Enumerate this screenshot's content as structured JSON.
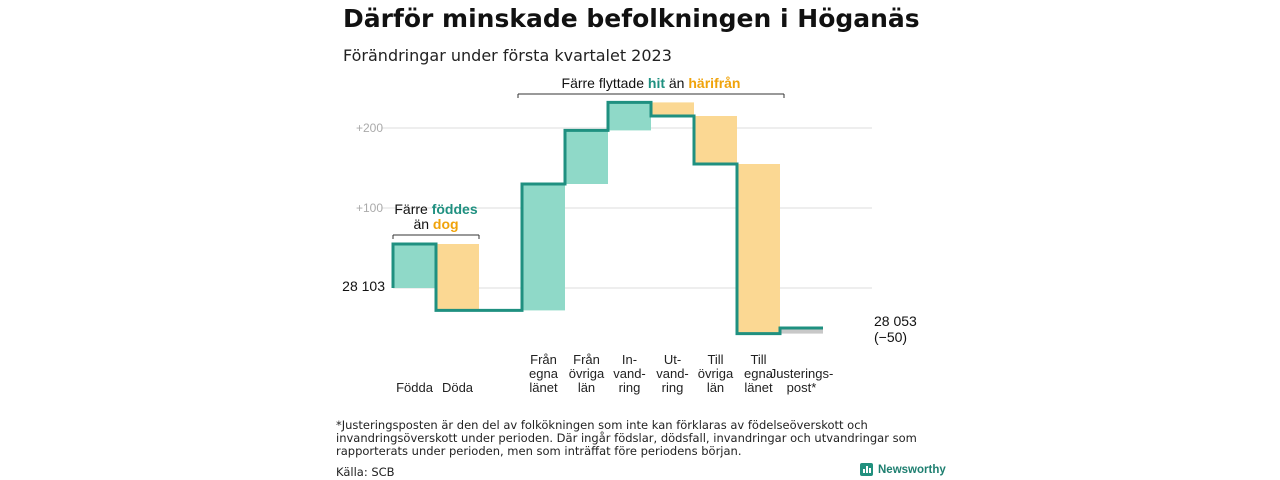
{
  "title": "Därför minskade befolkningen i Höganäs",
  "subtitle": "Förändringar under första kvartalet 2023",
  "colors": {
    "increase": "#8fd9c8",
    "decrease": "#fbd893",
    "line": "#1f9080",
    "adjustment": "#c8c8c8",
    "teal_text": "#1f9080",
    "orange_text": "#f0a30a",
    "grid": "#dddddd"
  },
  "chart_data": {
    "type": "waterfall",
    "start_value": 28103,
    "start_label": "28 103",
    "end_label": "28 053",
    "end_change_label": "(−50)",
    "ytick_labels": [
      "+100",
      "+200"
    ],
    "yticks": [
      100,
      200
    ],
    "ylim": [
      -70,
      240
    ],
    "steps": [
      {
        "label": "Födda",
        "delta": 55,
        "kind": "increase"
      },
      {
        "label": "Döda",
        "delta": -83,
        "kind": "decrease"
      },
      {
        "label": "",
        "delta": 0,
        "kind": "gap"
      },
      {
        "label": "Från egna länet",
        "delta": 158,
        "kind": "increase"
      },
      {
        "label": "Från övriga län",
        "delta": 67,
        "kind": "increase"
      },
      {
        "label": "In-vand-ring",
        "delta": 35,
        "kind": "increase"
      },
      {
        "label": "Ut-vand-ring",
        "delta": -17,
        "kind": "decrease"
      },
      {
        "label": "Till övriga län",
        "delta": -60,
        "kind": "decrease"
      },
      {
        "label": "Till egna länet",
        "delta": -212,
        "kind": "decrease"
      },
      {
        "label": "Justerings-post*",
        "delta": 7,
        "kind": "adjustment"
      }
    ],
    "x_labels": [
      {
        "step": 0,
        "lines": [
          "Födda"
        ]
      },
      {
        "step": 1,
        "lines": [
          "Döda"
        ]
      },
      {
        "step": 3,
        "lines": [
          "Från",
          "egna",
          "länet"
        ]
      },
      {
        "step": 4,
        "lines": [
          "Från",
          "övriga",
          "län"
        ]
      },
      {
        "step": 5,
        "lines": [
          "In-",
          "vand-",
          "ring"
        ]
      },
      {
        "step": 6,
        "lines": [
          "Ut-",
          "vand-",
          "ring"
        ]
      },
      {
        "step": 7,
        "lines": [
          "Till",
          "övriga",
          "län"
        ]
      },
      {
        "step": 8,
        "lines": [
          "Till",
          "egna",
          "länet"
        ]
      },
      {
        "step": 9,
        "lines": [
          "Justerings-",
          "post*"
        ]
      }
    ],
    "annotations": [
      {
        "id": "births",
        "parts": [
          [
            "Färre ",
            "plain"
          ],
          [
            "föddes",
            "teal"
          ]
        ],
        "parts2": [
          [
            "än ",
            "plain"
          ],
          [
            "dog",
            "orange"
          ]
        ],
        "from_step": 0,
        "to_step": 1
      },
      {
        "id": "moves",
        "parts": [
          [
            "Färre flyttade ",
            "plain"
          ],
          [
            "hit",
            "teal"
          ],
          [
            " än ",
            "plain"
          ],
          [
            "härifrån",
            "orange"
          ]
        ],
        "from_step": 3,
        "to_step": 8
      }
    ]
  },
  "footnote": "*Justeringsposten är den del av folkökningen som inte kan förklaras av födelseöverskott och invandringsöverskott under perioden. Där ingår födslar, dödsfall, invandringar och utvandringar som rapporterats under perioden, men som inträffat före periodens början.",
  "source": "Källa: SCB",
  "brand": "Newsworthy"
}
